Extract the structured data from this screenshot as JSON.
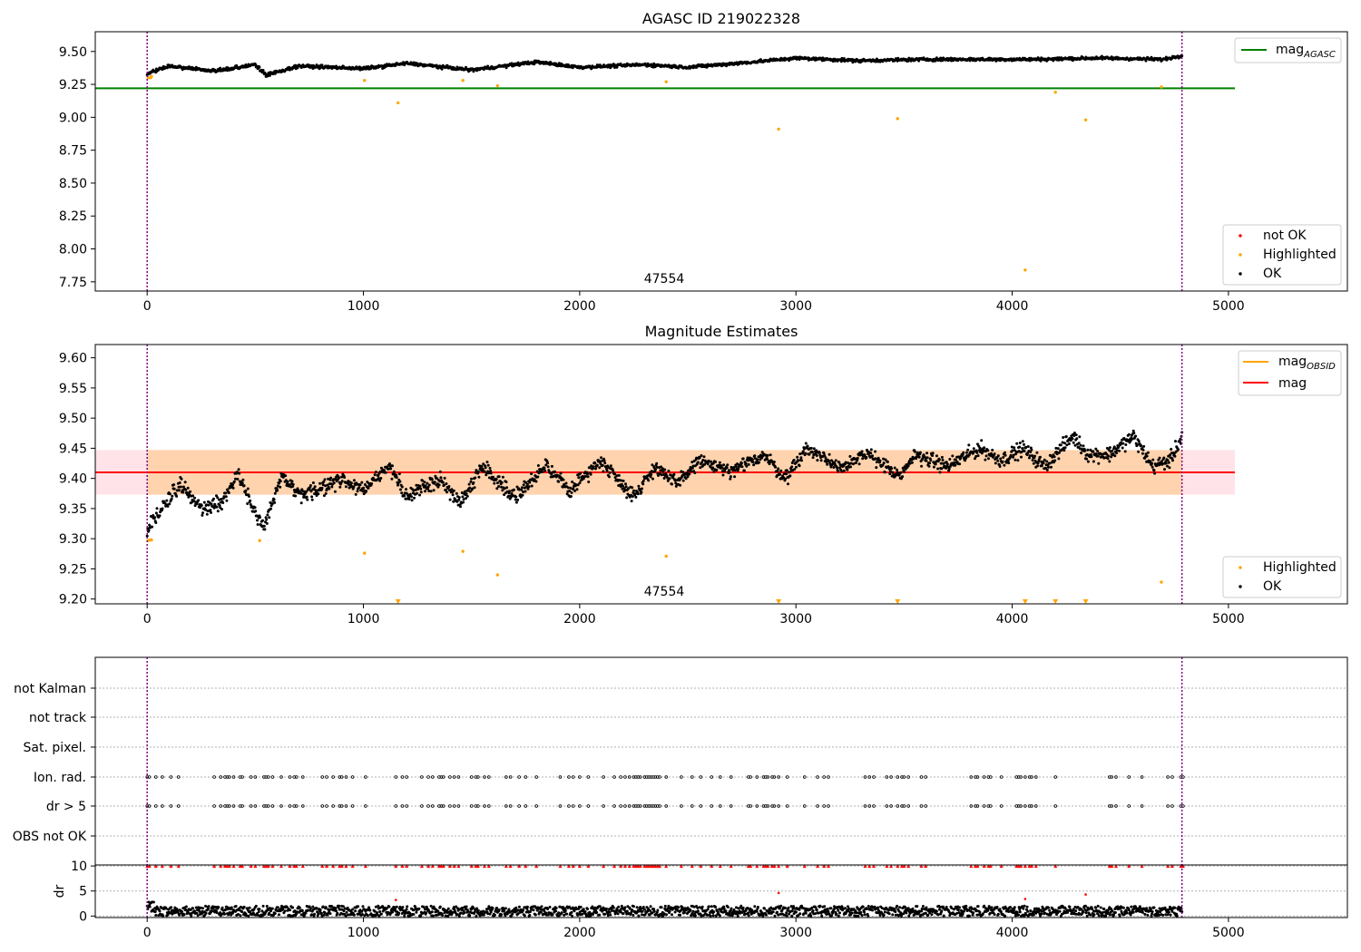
{
  "chart_data": [
    {
      "type": "scatter",
      "title": "AGASC ID 219022328",
      "xlim": [
        -240,
        5550
      ],
      "ylim": [
        7.68,
        9.65
      ],
      "xticks": [
        0,
        1000,
        2000,
        3000,
        4000,
        5000
      ],
      "yticks": [
        7.75,
        8.0,
        8.25,
        8.5,
        8.75,
        9.0,
        9.25,
        9.5
      ],
      "ytick_labels": [
        "7.75",
        "8.00",
        "8.25",
        "8.50",
        "8.75",
        "9.00",
        "9.25",
        "9.50"
      ],
      "obs_bounds": [
        0,
        4785
      ],
      "obsid_label": "47554",
      "reference_lines": [
        {
          "name": "mag_AGASC",
          "y": 9.22,
          "x": [
            -240,
            5030
          ],
          "color": "#008000"
        }
      ],
      "legend_upper": [
        {
          "label": "mag",
          "subscript": "AGASC",
          "color": "#008000"
        }
      ],
      "legend_lower": [
        {
          "label": "not OK",
          "color": "#ff0000"
        },
        {
          "label": "Highlighted",
          "color": "#ffa500"
        },
        {
          "label": "OK",
          "color": "#000000"
        }
      ],
      "series": [
        {
          "name": "OK",
          "color": "#000000",
          "trend": {
            "x": [
              0,
              100,
              300,
              500,
              550,
              700,
              1000,
              1200,
              1500,
              1800,
              2000,
              2300,
              2500,
              2800,
              3000,
              3300,
              3600,
              3900,
              4100,
              4400,
              4700,
              4785
            ],
            "y": [
              9.33,
              9.39,
              9.35,
              9.4,
              9.32,
              9.39,
              9.37,
              9.41,
              9.36,
              9.42,
              9.38,
              9.4,
              9.38,
              9.42,
              9.45,
              9.43,
              9.44,
              9.44,
              9.44,
              9.45,
              9.44,
              9.47
            ]
          }
        },
        {
          "name": "Highlighted",
          "color": "#ffa500",
          "x": [
            5,
            15,
            20,
            1005,
            1160,
            1460,
            1620,
            2400,
            2920,
            3470,
            4060,
            4200,
            4340,
            4690
          ],
          "y": [
            9.3,
            9.3,
            9.31,
            9.28,
            9.11,
            9.28,
            9.24,
            9.27,
            8.91,
            8.99,
            7.84,
            9.19,
            8.98,
            9.23
          ]
        }
      ]
    },
    {
      "type": "scatter",
      "title": "Magnitude Estimates",
      "xlim": [
        -240,
        5550
      ],
      "ylim": [
        9.192,
        9.622
      ],
      "xticks": [
        0,
        1000,
        2000,
        3000,
        4000,
        5000
      ],
      "yticks": [
        9.2,
        9.25,
        9.3,
        9.35,
        9.4,
        9.45,
        9.5,
        9.55,
        9.6
      ],
      "ytick_labels": [
        "9.20",
        "9.25",
        "9.30",
        "9.35",
        "9.40",
        "9.45",
        "9.50",
        "9.55",
        "9.60"
      ],
      "obs_bounds": [
        0,
        4785
      ],
      "obsid_label": "47554",
      "reference_lines": [
        {
          "name": "mag",
          "y": 9.41,
          "x": [
            -240,
            5030
          ],
          "color": "#ff0000"
        }
      ],
      "bands": [
        {
          "y": [
            9.373,
            9.447
          ],
          "x": [
            -240,
            5030
          ],
          "color": "#ffc0cb"
        },
        {
          "y": [
            9.373,
            9.447
          ],
          "x": [
            0,
            4785
          ],
          "color": "#ffa500"
        }
      ],
      "legend_upper": [
        {
          "label": "mag",
          "subscript": "OBSID",
          "color": "#ffa500"
        },
        {
          "label": "mag",
          "color": "#ff0000"
        }
      ],
      "legend_lower": [
        {
          "label": "Highlighted",
          "color": "#ffa500"
        },
        {
          "label": "OK",
          "color": "#000000"
        }
      ],
      "series": [
        {
          "name": "OK",
          "color": "#000000",
          "trend": {
            "x": [
              0,
              50,
              150,
              250,
              350,
              420,
              500,
              540,
              620,
              720,
              900,
              1000,
              1120,
              1200,
              1350,
              1450,
              1550,
              1700,
              1850,
              1950,
              2100,
              2250,
              2350,
              2450,
              2550,
              2700,
              2850,
              2950,
              3050,
              3200,
              3350,
              3480,
              3550,
              3700,
              3850,
              3950,
              4050,
              4150,
              4280,
              4350,
              4450,
              4560,
              4650,
              4730,
              4785
            ],
            "y": [
              9.31,
              9.34,
              9.39,
              9.35,
              9.36,
              9.41,
              9.34,
              9.32,
              9.4,
              9.37,
              9.4,
              9.38,
              9.42,
              9.37,
              9.4,
              9.36,
              9.42,
              9.37,
              9.42,
              9.38,
              9.43,
              9.37,
              9.42,
              9.39,
              9.43,
              9.41,
              9.44,
              9.4,
              9.45,
              9.42,
              9.44,
              9.4,
              9.44,
              9.42,
              9.45,
              9.43,
              9.45,
              9.42,
              9.47,
              9.44,
              9.44,
              9.47,
              9.42,
              9.43,
              9.47
            ]
          }
        },
        {
          "name": "Highlighted",
          "color": "#ffa500",
          "x": [
            5,
            15,
            20,
            520,
            1005,
            1460,
            1620,
            2400,
            4690
          ],
          "y": [
            9.297,
            9.298,
            9.298,
            9.297,
            9.276,
            9.279,
            9.24,
            9.271,
            9.228
          ]
        },
        {
          "name": "Highlighted (below range)",
          "color": "#ffa500",
          "marker": "triangle-down",
          "x": [
            1160,
            2920,
            3470,
            4060,
            4200,
            4340
          ],
          "y": [
            9.192,
            9.192,
            9.192,
            9.192,
            9.192,
            9.192
          ]
        }
      ]
    },
    {
      "type": "scatter",
      "title": "",
      "xlim": [
        -240,
        5550
      ],
      "xticks": [
        0,
        1000,
        2000,
        3000,
        4000,
        5000
      ],
      "obs_bounds": [
        0,
        4785
      ],
      "flag_rows": [
        "not Kalman",
        "not track",
        "Sat. pixel.",
        "Ion. rad.",
        "dr > 5",
        "OBS not OK"
      ],
      "flag_events_x": [
        0,
        10,
        40,
        70,
        110,
        145,
        310,
        340,
        360,
        370,
        380,
        400,
        430,
        440,
        480,
        500,
        540,
        550,
        560,
        580,
        620,
        660,
        680,
        690,
        720,
        810,
        830,
        860,
        890,
        900,
        920,
        950,
        1010,
        1150,
        1180,
        1200,
        1270,
        1300,
        1320,
        1350,
        1360,
        1370,
        1400,
        1420,
        1440,
        1500,
        1520,
        1530,
        1560,
        1580,
        1660,
        1680,
        1720,
        1750,
        1800,
        1910,
        1950,
        1970,
        2000,
        2040,
        2110,
        2160,
        2190,
        2210,
        2230,
        2250,
        2260,
        2270,
        2280,
        2300,
        2310,
        2320,
        2330,
        2340,
        2350,
        2360,
        2370,
        2400,
        2470,
        2520,
        2560,
        2610,
        2650,
        2700,
        2780,
        2790,
        2820,
        2850,
        2860,
        2870,
        2890,
        2900,
        2920,
        2960,
        3040,
        3100,
        3130,
        3150,
        3320,
        3340,
        3360,
        3420,
        3440,
        3470,
        3490,
        3500,
        3520,
        3580,
        3600,
        3810,
        3830,
        3840,
        3870,
        3890,
        3900,
        3950,
        4020,
        4030,
        4040,
        4060,
        4080,
        4090,
        4110,
        4200,
        4450,
        4460,
        4480,
        4540,
        4600,
        4720,
        4740,
        4780,
        4790
      ],
      "flag_events_rows": [
        "Ion. rad.",
        "dr > 5"
      ],
      "dr_subplot": {
        "ylabel": "dr",
        "yticks": [
          0,
          5,
          10
        ],
        "ylim": [
          -0.3,
          10.2
        ],
        "flagged_value": 10,
        "flagged_color": "#ff0000",
        "red_points": {
          "x": [
            1150,
            2920,
            4060,
            4340
          ],
          "y": [
            3.2,
            4.6,
            3.4,
            4.3
          ]
        },
        "ok_color": "#000000",
        "ok_band": [
          0,
          2
        ]
      }
    }
  ]
}
